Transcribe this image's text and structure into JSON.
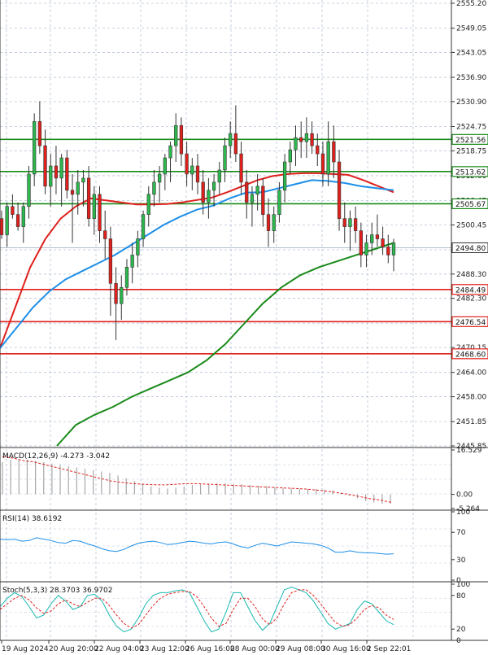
{
  "chart_data": {
    "type": "candlestick",
    "price_axis": {
      "ticks": [
        "2555.20",
        "2549.05",
        "2543.05",
        "2536.90",
        "2530.90",
        "2524.75",
        "2518.75",
        "2512.60",
        "2506.45",
        "2500.45",
        "2494.30",
        "2488.30",
        "2482.30",
        "2476.15",
        "2470.15",
        "2464.00",
        "2458.00",
        "2451.85",
        "2445.85"
      ],
      "tick_values": [
        2555.2,
        2549.05,
        2543.05,
        2536.9,
        2530.9,
        2524.75,
        2518.75,
        2512.6,
        2506.45,
        2500.45,
        2494.3,
        2488.3,
        2482.3,
        2476.15,
        2470.15,
        2464.0,
        2458.0,
        2451.85,
        2445.85
      ],
      "range": [
        2445.85,
        2555.2
      ]
    },
    "time_axis": [
      "19 Aug 2024",
      "20 Aug 20:00",
      "22 Aug 04:00",
      "23 Aug 12:00",
      "26 Aug 16:00",
      "28 Aug 00:00",
      "29 Aug 08:00",
      "30 Aug 16:00",
      "2 Sep 22:01"
    ],
    "horizontal_levels": [
      {
        "value": 2521.56,
        "label": "2521.56",
        "color": "#1a8a1a"
      },
      {
        "value": 2513.62,
        "label": "2513.62",
        "color": "#1a8a1a"
      },
      {
        "value": 2505.67,
        "label": "2505.67",
        "color": "#1a8a1a"
      },
      {
        "value": 2484.49,
        "label": "2484.49",
        "color": "#e0201c"
      },
      {
        "value": 2476.54,
        "label": "2476.54",
        "color": "#e0201c"
      },
      {
        "value": 2468.6,
        "label": "2468.60",
        "color": "#e0201c"
      }
    ],
    "current_price": {
      "value": 2494.8,
      "label": "2494.80"
    },
    "candles": [
      [
        2502,
        2504,
        2497,
        2498
      ],
      [
        2498,
        2506,
        2495,
        2505
      ],
      [
        2505,
        2508,
        2502,
        2503
      ],
      [
        2503,
        2506,
        2499,
        2500
      ],
      [
        2500,
        2506,
        2496,
        2505
      ],
      [
        2505,
        2515,
        2502,
        2513
      ],
      [
        2513,
        2528,
        2510,
        2526
      ],
      [
        2526,
        2531,
        2518,
        2520
      ],
      [
        2520,
        2524,
        2508,
        2510
      ],
      [
        2510,
        2518,
        2505,
        2515
      ],
      [
        2515,
        2520,
        2508,
        2512
      ],
      [
        2512,
        2518,
        2505,
        2517
      ],
      [
        2517,
        2519,
        2507,
        2509
      ],
      [
        2509,
        2513,
        2496,
        2508
      ],
      [
        2508,
        2514,
        2503,
        2511
      ],
      [
        2511,
        2514,
        2505,
        2512
      ],
      [
        2512,
        2515,
        2500,
        2502
      ],
      [
        2502,
        2510,
        2498,
        2508
      ],
      [
        2508,
        2510,
        2496,
        2499
      ],
      [
        2499,
        2504,
        2492,
        2497
      ],
      [
        2497,
        2500,
        2478,
        2486
      ],
      [
        2486,
        2490,
        2472,
        2481
      ],
      [
        2481,
        2488,
        2477,
        2485
      ],
      [
        2485,
        2492,
        2483,
        2490
      ],
      [
        2490,
        2496,
        2486,
        2493
      ],
      [
        2493,
        2499,
        2490,
        2497
      ],
      [
        2497,
        2504,
        2495,
        2503
      ],
      [
        2503,
        2510,
        2500,
        2508
      ],
      [
        2508,
        2514,
        2505,
        2511
      ],
      [
        2511,
        2515,
        2506,
        2513
      ],
      [
        2513,
        2518,
        2509,
        2517
      ],
      [
        2517,
        2521,
        2511,
        2520
      ],
      [
        2520,
        2528,
        2516,
        2525
      ],
      [
        2525,
        2527,
        2515,
        2518
      ],
      [
        2518,
        2521,
        2510,
        2513
      ],
      [
        2513,
        2517,
        2509,
        2515
      ],
      [
        2515,
        2518,
        2508,
        2511
      ],
      [
        2511,
        2514,
        2503,
        2506
      ],
      [
        2506,
        2512,
        2502,
        2509
      ],
      [
        2509,
        2513,
        2505,
        2511
      ],
      [
        2511,
        2516,
        2508,
        2514
      ],
      [
        2514,
        2522,
        2511,
        2520
      ],
      [
        2520,
        2526,
        2517,
        2523
      ],
      [
        2523,
        2530,
        2516,
        2518
      ],
      [
        2518,
        2521,
        2508,
        2511
      ],
      [
        2511,
        2514,
        2502,
        2506
      ],
      [
        2506,
        2510,
        2500,
        2508
      ],
      [
        2508,
        2513,
        2504,
        2510
      ],
      [
        2510,
        2512,
        2500,
        2503
      ],
      [
        2503,
        2507,
        2495,
        2499
      ],
      [
        2499,
        2505,
        2496,
        2503
      ],
      [
        2503,
        2511,
        2501,
        2509
      ],
      [
        2509,
        2518,
        2506,
        2516
      ],
      [
        2516,
        2521,
        2513,
        2519
      ],
      [
        2519,
        2525,
        2515,
        2522
      ],
      [
        2522,
        2526,
        2517,
        2521
      ],
      [
        2521,
        2527,
        2517,
        2523
      ],
      [
        2523,
        2526,
        2518,
        2520
      ],
      [
        2520,
        2523,
        2515,
        2518
      ],
      [
        2518,
        2521,
        2510,
        2513
      ],
      [
        2513,
        2526,
        2510,
        2521
      ],
      [
        2521,
        2525,
        2512,
        2516
      ],
      [
        2516,
        2519,
        2499,
        2502
      ],
      [
        2502,
        2506,
        2496,
        2500
      ],
      [
        2500,
        2504,
        2494,
        2502
      ],
      [
        2502,
        2505,
        2496,
        2499
      ],
      [
        2499,
        2501,
        2490,
        2493
      ],
      [
        2493,
        2498,
        2490,
        2496
      ],
      [
        2496,
        2501,
        2493,
        2498
      ],
      [
        2498,
        2503,
        2495,
        2497
      ],
      [
        2497,
        2500,
        2493,
        2495
      ],
      [
        2495,
        2498,
        2491,
        2493
      ],
      [
        2493,
        2497,
        2489,
        2496
      ]
    ],
    "moving_averages": [
      {
        "color": "#e0201c",
        "values": [
          2470,
          2480,
          2490,
          2497,
          2502,
          2505,
          2507,
          2506.5,
          2506,
          2505.5,
          2505.5,
          2505.6,
          2506,
          2506.6,
          2507.2,
          2508.5,
          2510,
          2511.5,
          2512.5,
          2513,
          2513.2,
          2513.2,
          2513,
          2512.8,
          2511.5,
          2510,
          2508.5
        ]
      },
      {
        "color": "#1e8fe8",
        "values": [
          2470,
          2475,
          2480,
          2484,
          2487,
          2489,
          2491,
          2493,
          2495.5,
          2498,
          2500.5,
          2502.5,
          2504.2,
          2505.2,
          2507,
          2508.4,
          2508.5,
          2509.5,
          2510.5,
          2511.5,
          2511.3,
          2510.8,
          2510,
          2509.5,
          2509
        ]
      },
      {
        "color": "#1a8a1a",
        "values": [
          2445.85,
          2451,
          2453.5,
          2455.5,
          2458,
          2460,
          2462,
          2464,
          2467,
          2471,
          2476,
          2481,
          2485,
          2488,
          2490,
          2491.5,
          2493,
          2494.5,
          2496
        ]
      }
    ],
    "indicators": [
      {
        "name": "MACD",
        "label": "MACD(12,26,9) -4.273 -3.042",
        "axis_labels": [
          "16.529",
          "0.00",
          "-5.264"
        ],
        "histogram": [
          12,
          13,
          13,
          13,
          12.5,
          12,
          11.5,
          11,
          10.5,
          10,
          9.5,
          9,
          8.5,
          8,
          7,
          6,
          5,
          4,
          3,
          2.5,
          2.2,
          2.5,
          3,
          3.5,
          3.8,
          4,
          4.2,
          4.2,
          4,
          3.8,
          3.5,
          3.2,
          3,
          2.8,
          2.5,
          2.2,
          2,
          2,
          2,
          1.8,
          1.5,
          0.5,
          -0.5,
          -1.5,
          -2.5,
          -3,
          -3.5,
          -3.5
        ],
        "signal": [
          14,
          13.5,
          12.5,
          12,
          11,
          10,
          9,
          8,
          7,
          6,
          5,
          4.5,
          4,
          3.8,
          3.6,
          3.5,
          3.8,
          4,
          4,
          3.8,
          3.6,
          3.4,
          3.2,
          3,
          2.8,
          2.6,
          2.4,
          2.2,
          2,
          1.6,
          1.2,
          0.6,
          0,
          -0.8,
          -1.6,
          -2.2,
          -3
        ]
      },
      {
        "name": "RSI",
        "label": "RSI(14) 38.6192",
        "axis_labels": [
          "100",
          "70",
          "30",
          "0"
        ],
        "line": [
          60,
          59,
          60,
          57,
          58,
          62,
          60,
          58,
          55,
          54,
          58,
          57,
          53,
          50,
          46,
          43,
          42,
          45,
          50,
          54,
          56,
          57,
          55,
          52,
          53,
          55,
          57,
          56,
          54,
          53,
          55,
          56,
          53,
          49,
          47,
          51,
          54,
          52,
          50,
          53,
          56,
          55,
          54,
          53,
          51,
          47,
          41,
          41,
          43,
          41,
          40,
          40,
          39,
          38,
          38.6
        ]
      },
      {
        "name": "Stoch",
        "label": "Stoch(5,3,3) 28.3703 36.9702",
        "axis_labels": [
          "100",
          "80",
          "20",
          "0"
        ],
        "k": [
          60,
          75,
          85,
          78,
          60,
          40,
          45,
          65,
          80,
          70,
          55,
          60,
          80,
          82,
          70,
          45,
          25,
          15,
          20,
          40,
          65,
          80,
          85,
          85,
          88,
          90,
          85,
          60,
          35,
          15,
          20,
          50,
          85,
          85,
          60,
          35,
          18,
          30,
          60,
          90,
          95,
          90,
          85,
          70,
          50,
          30,
          20,
          25,
          30,
          55,
          70,
          65,
          50,
          35,
          28
        ],
        "d": [
          55,
          65,
          75,
          80,
          72,
          58,
          48,
          52,
          65,
          72,
          65,
          60,
          68,
          75,
          75,
          62,
          45,
          30,
          22,
          28,
          45,
          62,
          75,
          82,
          85,
          87,
          87,
          78,
          60,
          40,
          25,
          30,
          55,
          75,
          75,
          60,
          38,
          28,
          40,
          65,
          85,
          90,
          90,
          80,
          65,
          48,
          32,
          25,
          28,
          40,
          55,
          62,
          58,
          45,
          37
        ]
      }
    ]
  }
}
